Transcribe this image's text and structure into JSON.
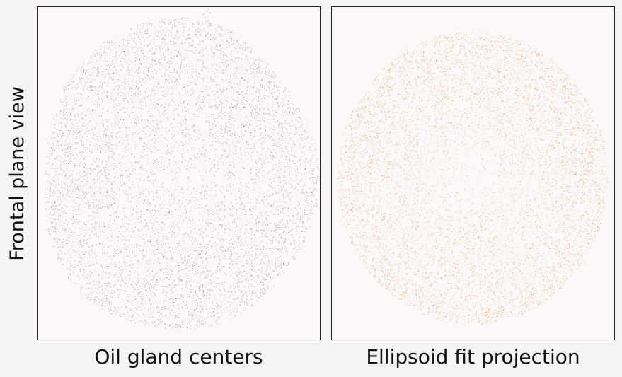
{
  "ylabel": "Frontal plane view",
  "chart_data": [
    {
      "type": "scatter",
      "title": "Oil gland centers",
      "color": "#5b3f95",
      "xticks": [],
      "yticks": [],
      "grid": false,
      "point_count_approx": 7000
    },
    {
      "type": "scatter",
      "title": "Ellipsoid fit projection",
      "color": "#e0701c",
      "xticks": [],
      "yticks": [],
      "grid": false,
      "point_count_approx": 7000
    }
  ]
}
